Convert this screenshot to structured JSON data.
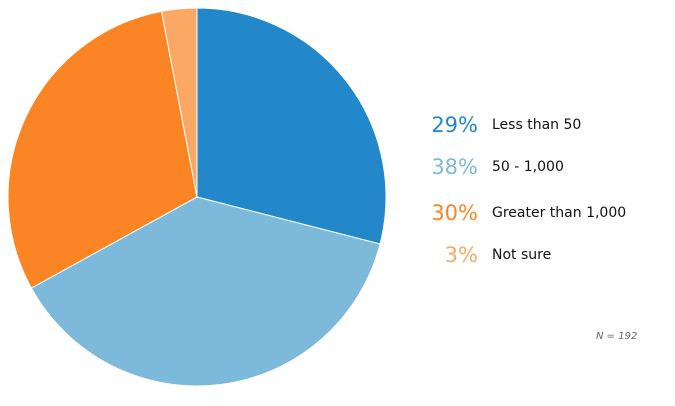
{
  "chart_data": {
    "type": "pie",
    "slices": [
      {
        "label": "Less than 50",
        "value": 29,
        "display": "29%",
        "color": "#2288c9"
      },
      {
        "label": "50 - 1,000",
        "value": 38,
        "display": "38%",
        "color": "#7cb9da"
      },
      {
        "label": "Greater than 1,000",
        "value": 30,
        "display": "30%",
        "color": "#fb8524"
      },
      {
        "label": "Not sure",
        "value": 3,
        "display": "3%",
        "color": "#fba865"
      }
    ],
    "start_angle_deg": 0,
    "direction": "clockwise",
    "legend_position": "right",
    "note": "N = 192"
  }
}
